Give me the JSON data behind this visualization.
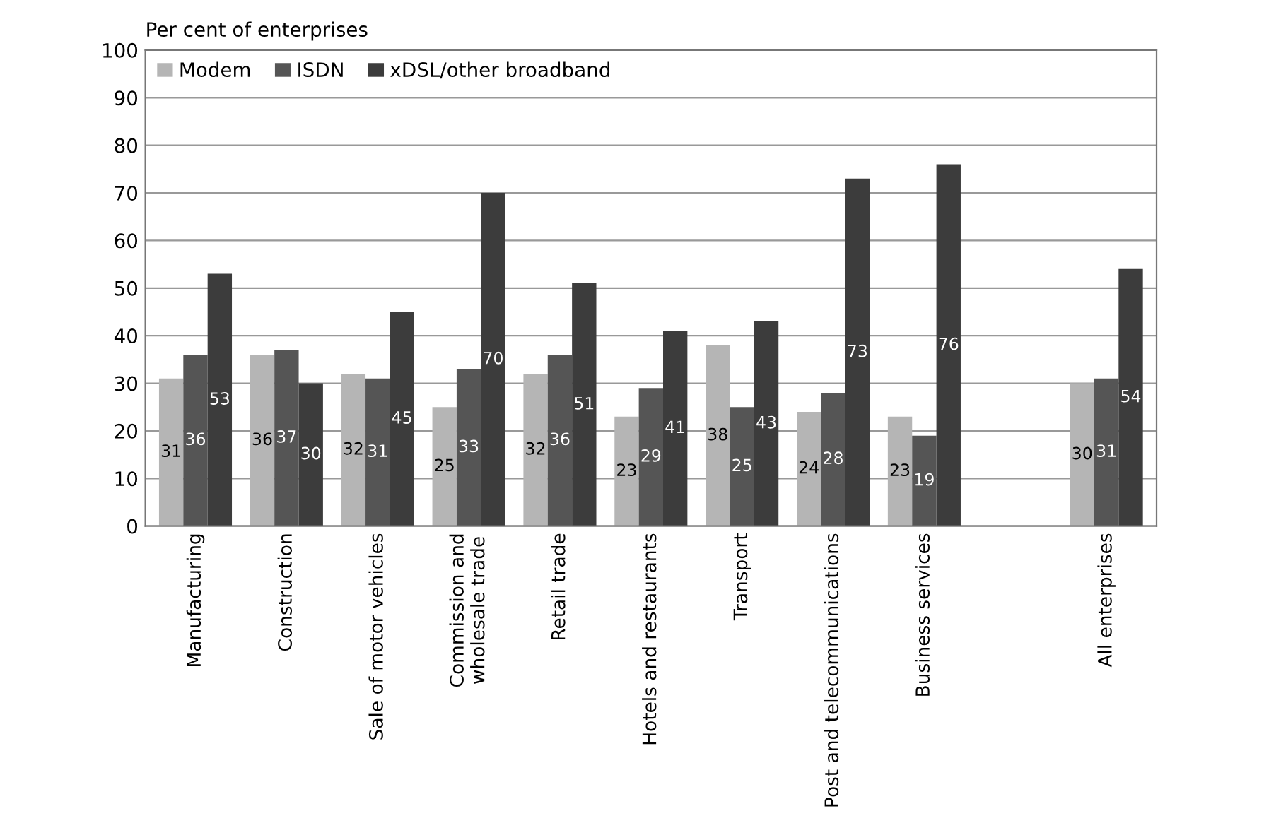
{
  "chart_data": {
    "type": "bar",
    "ylabel": "Per cent of enterprises",
    "categories": [
      "Manufacturing",
      "Construction",
      "Sale of motor vehicles",
      "Commission and\nwholesale trade",
      "Retail trade",
      "Hotels and restaurants",
      "Transport",
      "Post and telecommunications",
      "Business services",
      null,
      "All enterprises"
    ],
    "series": [
      {
        "name": "Modem",
        "color": "#b5b5b5",
        "values": [
          31,
          36,
          32,
          25,
          32,
          23,
          38,
          24,
          23,
          null,
          30
        ]
      },
      {
        "name": "ISDN",
        "color": "#555555",
        "values": [
          36,
          37,
          31,
          33,
          36,
          29,
          25,
          28,
          19,
          null,
          31
        ]
      },
      {
        "name": "xDSL/other broadband",
        "color": "#3c3c3c",
        "values": [
          53,
          30,
          45,
          70,
          51,
          41,
          43,
          73,
          76,
          null,
          54
        ]
      }
    ],
    "ylim": [
      0,
      100
    ],
    "yticks": [
      0,
      10,
      20,
      30,
      40,
      50,
      60,
      70,
      80,
      90,
      100
    ],
    "grid": "y",
    "legend": "top left",
    "data_labels": true
  }
}
